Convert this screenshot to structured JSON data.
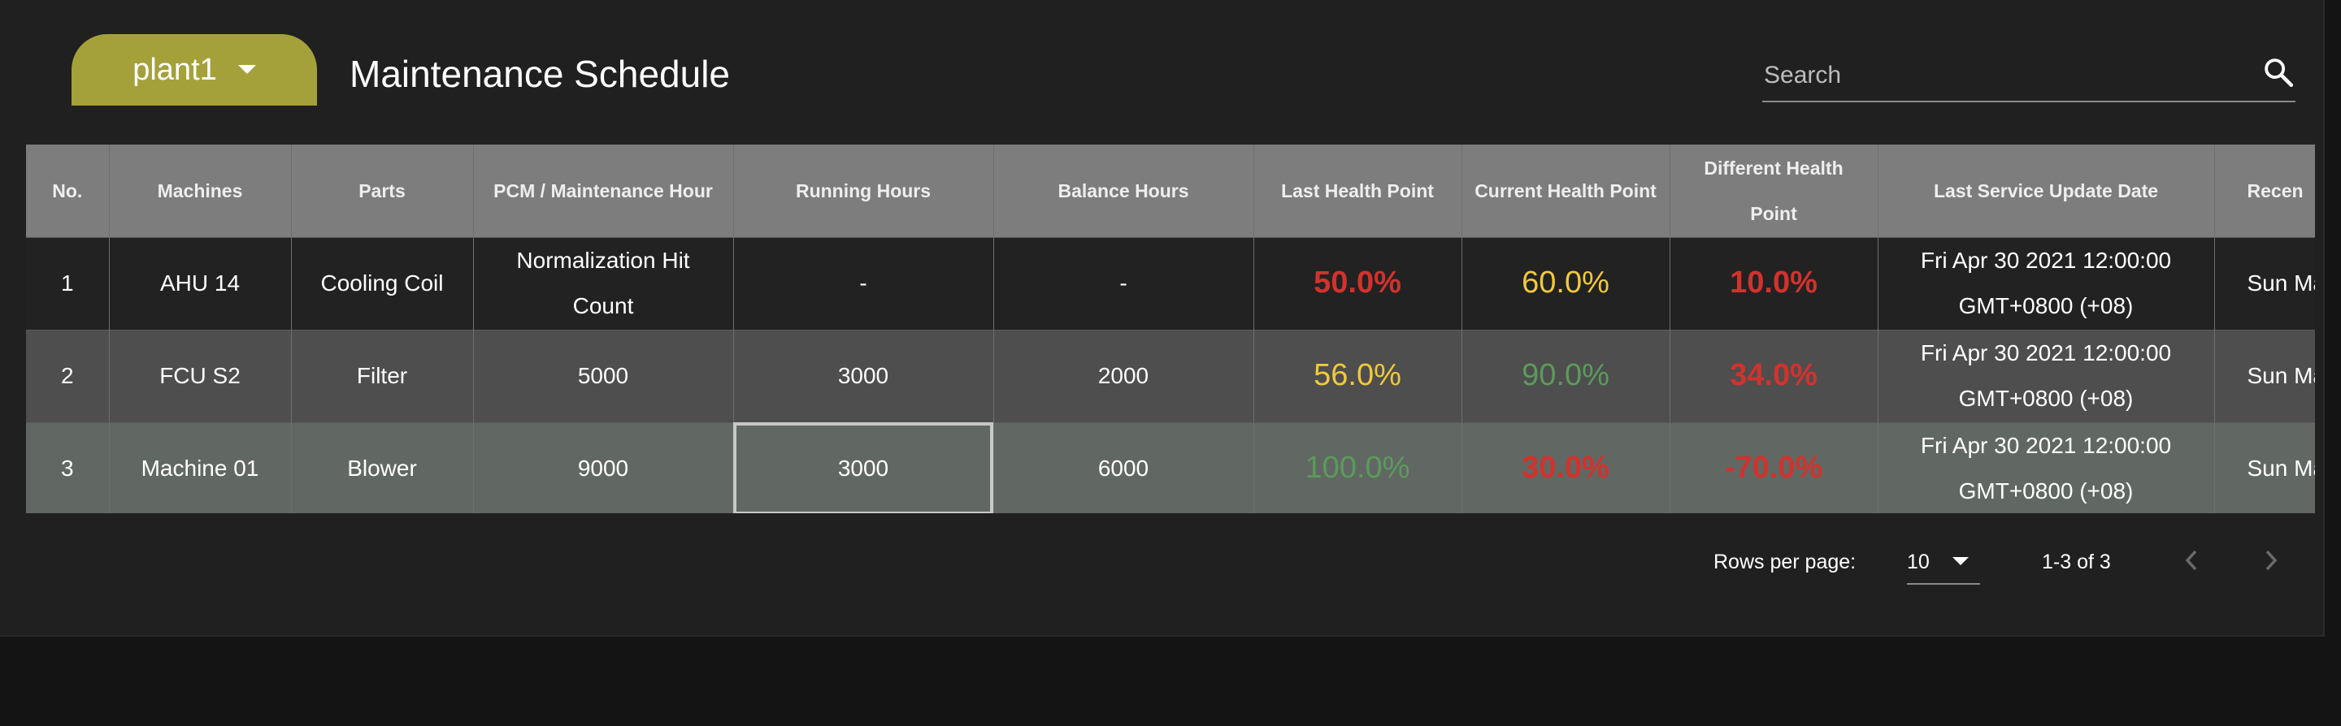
{
  "plant_selector": {
    "label": "plant1"
  },
  "page_title": "Maintenance Schedule",
  "search": {
    "placeholder": "Search",
    "value": ""
  },
  "table": {
    "headers": [
      "No.",
      "Machines",
      "Parts",
      "PCM / Maintenance Hour",
      "Running Hours",
      "Balance Hours",
      "Last Health Point",
      "Current Health Point",
      "Different Health Point",
      "Last Service Update Date",
      "Recen"
    ],
    "rows": [
      {
        "no": "1",
        "machine": "AHU 14",
        "part": "Cooling Coil",
        "pcm": "Normalization Hit Count",
        "running": "-",
        "balance": "-",
        "last_hp": "50.0%",
        "current_hp": "60.0%",
        "diff_hp": "10.0%",
        "last_service": "Fri Apr 30 2021 12:00:00 GMT+0800 (+08)",
        "recent": "Sun Ma G"
      },
      {
        "no": "2",
        "machine": "FCU S2",
        "part": "Filter",
        "pcm": "5000",
        "running": "3000",
        "balance": "2000",
        "last_hp": "56.0%",
        "current_hp": "90.0%",
        "diff_hp": "34.0%",
        "last_service": "Fri Apr 30 2021 12:00:00 GMT+0800 (+08)",
        "recent": "Sun Ma G"
      },
      {
        "no": "3",
        "machine": "Machine 01",
        "part": "Blower",
        "pcm": "9000",
        "running": "3000",
        "balance": "6000",
        "last_hp": "100.0%",
        "current_hp": "30.0%",
        "diff_hp": "-70.0%",
        "last_service": "Fri Apr 30 2021 12:00:00 GMT+0800 (+08)",
        "recent": "Sun Ma G"
      }
    ]
  },
  "pagination": {
    "rows_per_page_label": "Rows per page:",
    "rows_per_page": "10",
    "range": "1-3 of 3"
  },
  "colors": {
    "accent": "#a5a13a",
    "health_red": "#d2322d",
    "health_yellow": "#f0c93c",
    "health_green": "#5c9a5c"
  },
  "icons": [
    "dropdown-caret-icon",
    "search-icon",
    "chevron-left-icon",
    "chevron-right-icon"
  ]
}
